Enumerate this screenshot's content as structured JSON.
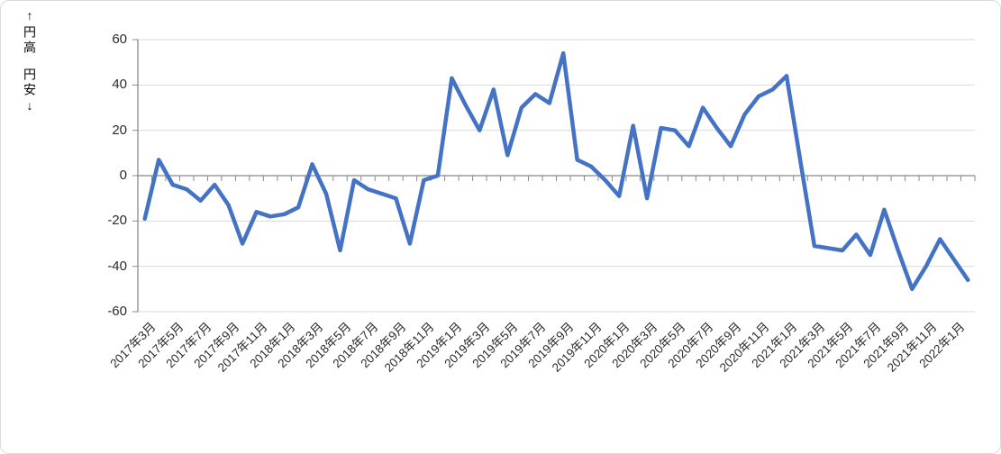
{
  "annotation": {
    "top": "↑円高",
    "bottom": "円安↓"
  },
  "chart_data": {
    "type": "line",
    "title": "",
    "ylabel": "",
    "xlabel": "",
    "ylim": [
      -60,
      60
    ],
    "grid": true,
    "legend": "none",
    "line_color": "#4472C4",
    "y_ticks": [
      60,
      40,
      20,
      0,
      -20,
      -40,
      -60
    ],
    "x_tick_labels": [
      "2017年3月",
      "2017年5月",
      "2017年7月",
      "2017年9月",
      "2017年11月",
      "2018年1月",
      "2018年3月",
      "2018年5月",
      "2018年7月",
      "2018年9月",
      "2018年11月",
      "2019年1月",
      "2019年3月",
      "2019年5月",
      "2019年7月",
      "2019年9月",
      "2019年11月",
      "2020年1月",
      "2020年3月",
      "2020年5月",
      "2020年7月",
      "2020年9月",
      "2020年11月",
      "2021年1月",
      "2021年3月",
      "2021年5月",
      "2021年7月",
      "2021年9月",
      "2021年11月",
      "2022年1月"
    ],
    "x_label_interval": 2,
    "categories": [
      "2017年3月",
      "2017年4月",
      "2017年5月",
      "2017年6月",
      "2017年7月",
      "2017年8月",
      "2017年9月",
      "2017年10月",
      "2017年11月",
      "2017年12月",
      "2018年1月",
      "2018年2月",
      "2018年3月",
      "2018年4月",
      "2018年5月",
      "2018年6月",
      "2018年7月",
      "2018年8月",
      "2018年9月",
      "2018年10月",
      "2018年11月",
      "2018年12月",
      "2019年1月",
      "2019年2月",
      "2019年3月",
      "2019年4月",
      "2019年5月",
      "2019年6月",
      "2019年7月",
      "2019年8月",
      "2019年9月",
      "2019年10月",
      "2019年11月",
      "2019年12月",
      "2020年1月",
      "2020年2月",
      "2020年3月",
      "2020年4月",
      "2020年5月",
      "2020年6月",
      "2020年7月",
      "2020年8月",
      "2020年9月",
      "2020年10月",
      "2020年11月",
      "2020年12月",
      "2021年1月",
      "2021年2月",
      "2021年3月",
      "2021年4月",
      "2021年5月",
      "2021年6月",
      "2021年7月",
      "2021年8月",
      "2021年9月",
      "2021年10月",
      "2021年11月",
      "2021年12月",
      "2022年1月",
      "2022年2月"
    ],
    "values": [
      -19,
      7,
      -4,
      -6,
      -11,
      -4,
      -13,
      -30,
      -16,
      -18,
      -17,
      -14,
      5,
      -8,
      -33,
      -2,
      -6,
      -8,
      -10,
      -30,
      -2,
      0,
      43,
      31,
      20,
      38,
      9,
      30,
      36,
      32,
      54,
      7,
      4,
      -2,
      -9,
      22,
      -10,
      21,
      20,
      13,
      30,
      21,
      13,
      27,
      35,
      38,
      44,
      6,
      -31,
      -32,
      -33,
      -26,
      -35,
      -15,
      -33,
      -50,
      -40,
      -28,
      -37,
      -46
    ]
  }
}
